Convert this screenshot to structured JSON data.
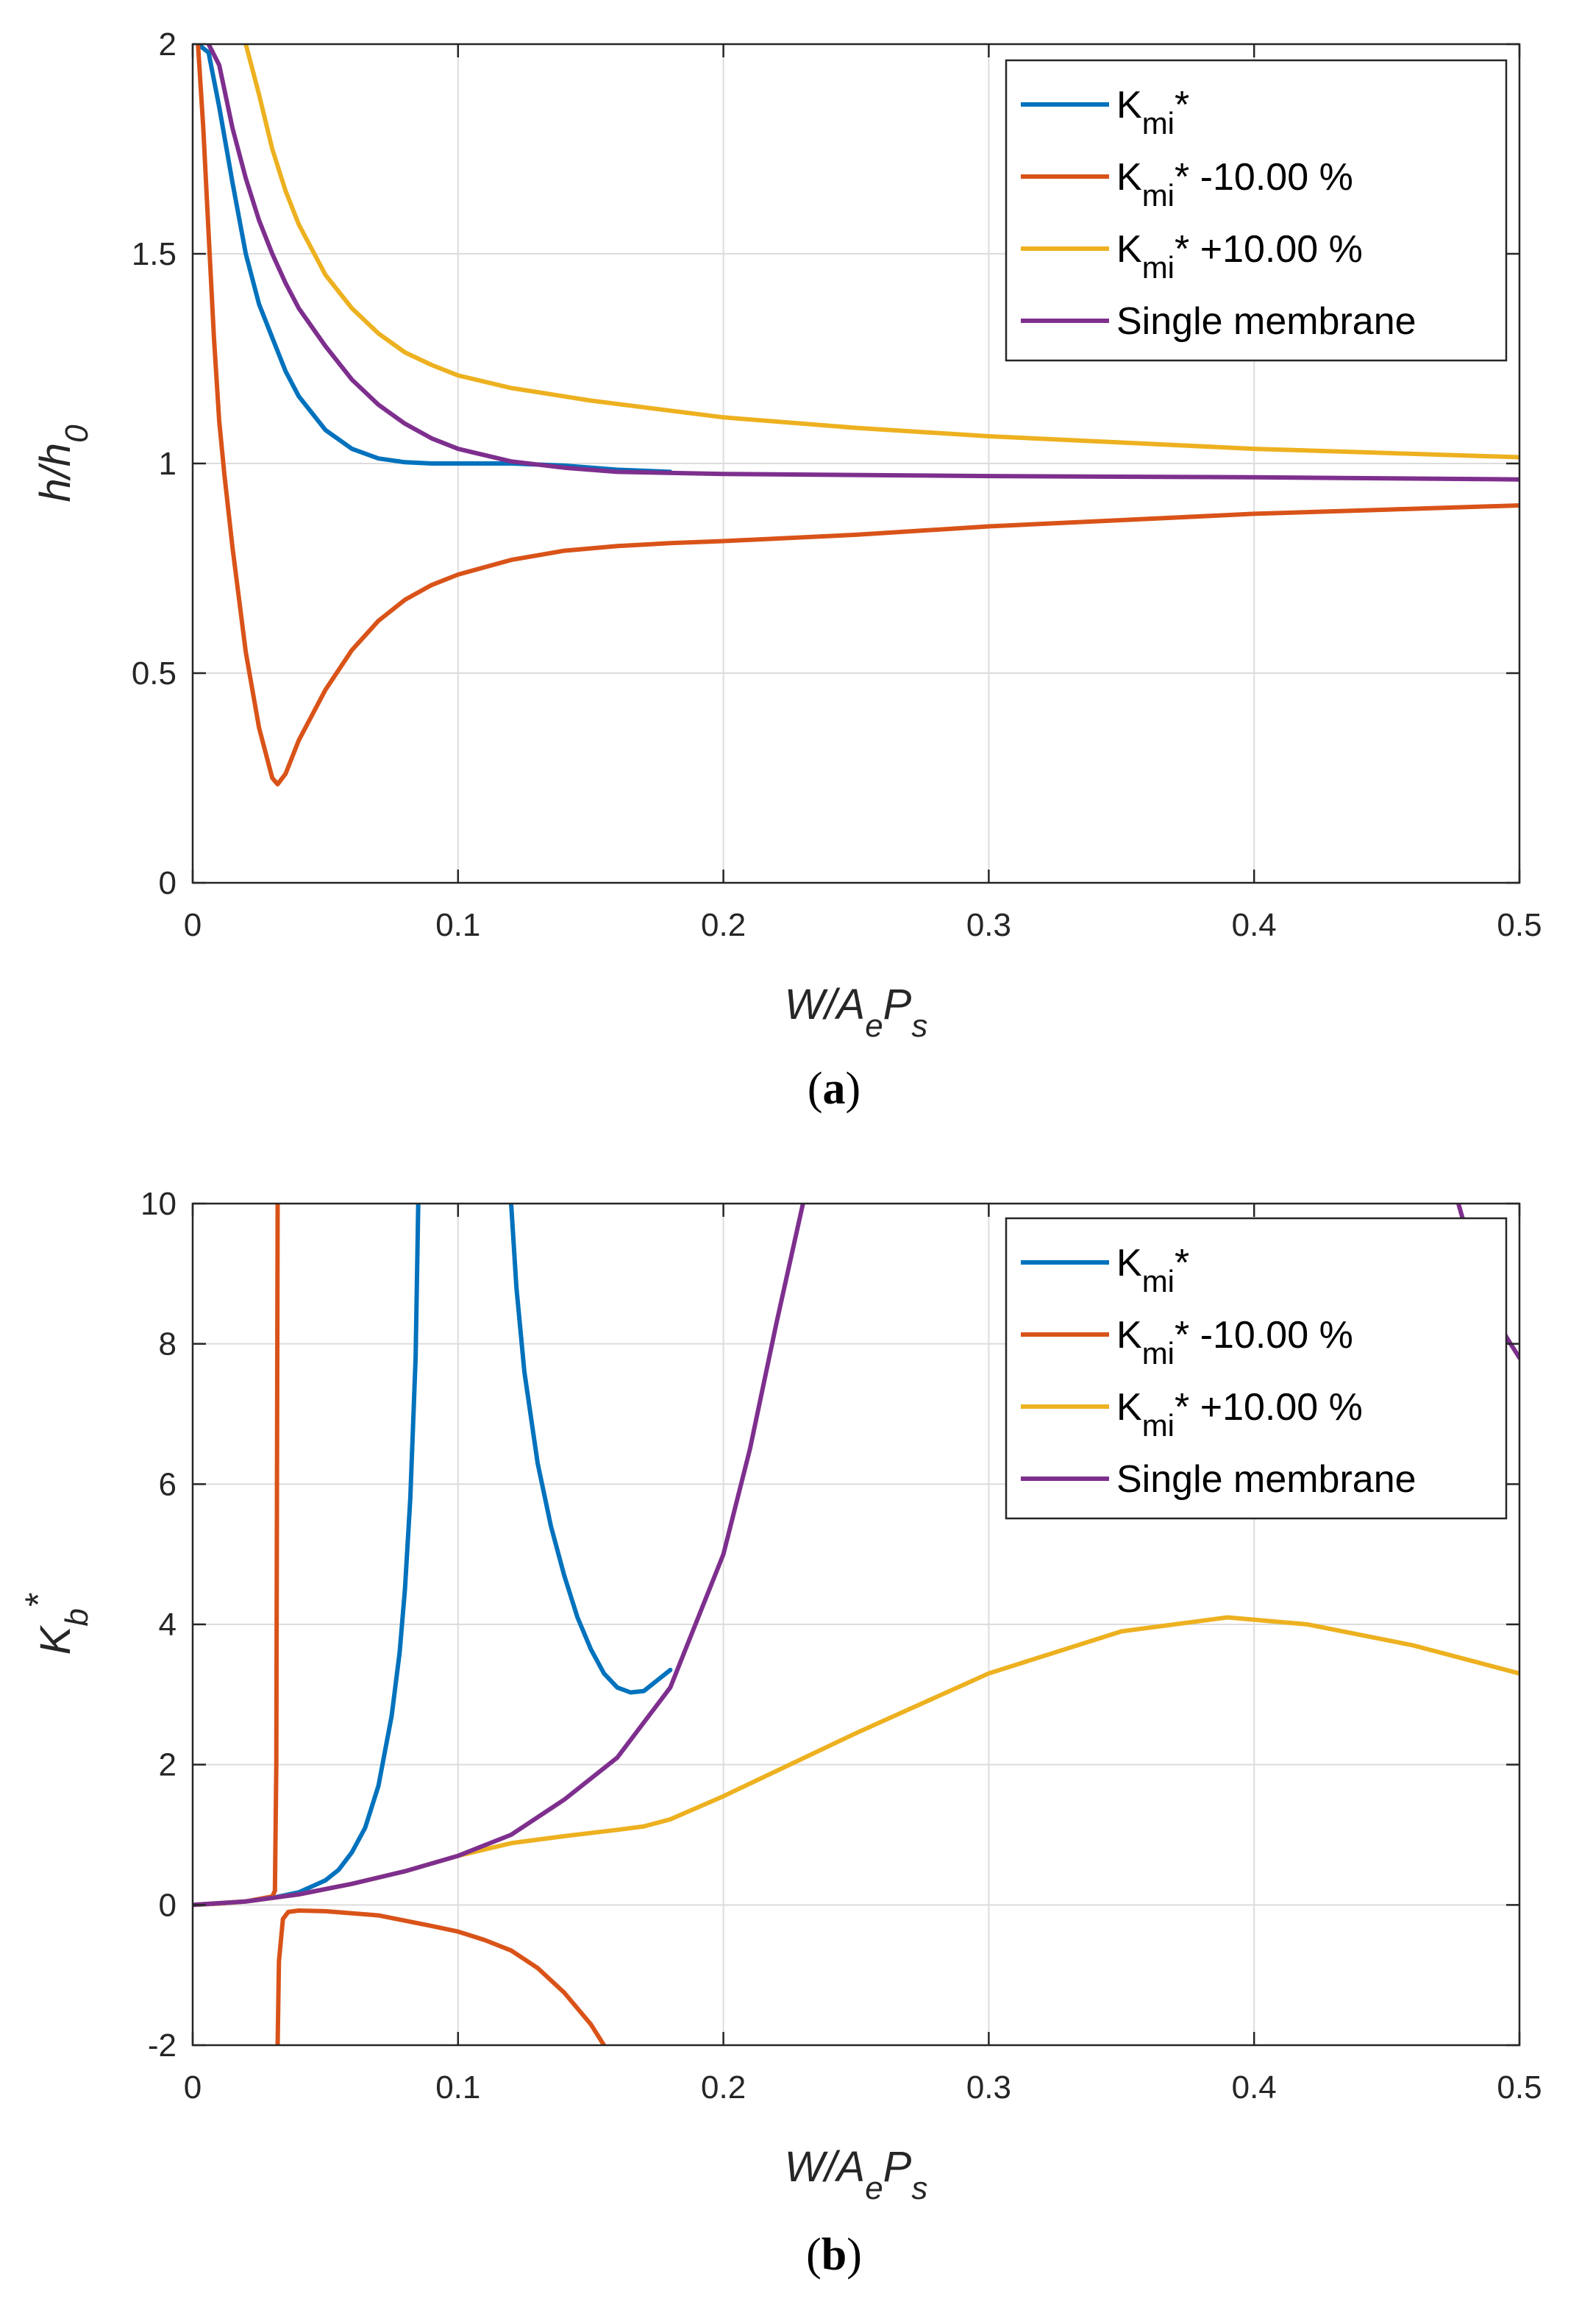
{
  "chart_data": [
    {
      "type": "line",
      "caption": "a",
      "xlabel": {
        "main": "W/A",
        "sub": "e",
        "main2": "P",
        "sub2": "s"
      },
      "ylabel": {
        "main": "h/h",
        "sub": "0"
      },
      "xlim": [
        0,
        0.5
      ],
      "ylim": [
        0,
        2
      ],
      "xticks": [
        0,
        0.1,
        0.2,
        0.3,
        0.4,
        0.5
      ],
      "xtick_labels": [
        "0",
        "0.1",
        "0.2",
        "0.3",
        "0.4",
        "0.5"
      ],
      "yticks": [
        0,
        0.5,
        1,
        1.5,
        2
      ],
      "ytick_labels": [
        "0",
        "0.5",
        "1",
        "1.5",
        "2"
      ],
      "grid": true,
      "legend_position": "top-right",
      "series": [
        {
          "name": "K_mi*",
          "label": {
            "main": "K",
            "sub": "mi",
            "suffix": "*"
          },
          "color": "#0072BD",
          "points": [
            [
              0.002,
              2.0
            ],
            [
              0.006,
              1.98
            ],
            [
              0.01,
              1.85
            ],
            [
              0.015,
              1.67
            ],
            [
              0.02,
              1.5
            ],
            [
              0.025,
              1.38
            ],
            [
              0.03,
              1.3
            ],
            [
              0.035,
              1.22
            ],
            [
              0.04,
              1.16
            ],
            [
              0.045,
              1.12
            ],
            [
              0.05,
              1.08
            ],
            [
              0.06,
              1.035
            ],
            [
              0.07,
              1.012
            ],
            [
              0.08,
              1.003
            ],
            [
              0.09,
              1.0
            ],
            [
              0.1,
              1.0
            ],
            [
              0.12,
              1.0
            ],
            [
              0.14,
              0.995
            ],
            [
              0.16,
              0.985
            ],
            [
              0.18,
              0.98
            ]
          ]
        },
        {
          "name": "K_mi* -10.00 %",
          "label": {
            "main": "K",
            "sub": "mi",
            "suffix": "* -10.00 %"
          },
          "color": "#D95319",
          "points": [
            [
              0.002,
              2.0
            ],
            [
              0.004,
              1.8
            ],
            [
              0.006,
              1.55
            ],
            [
              0.008,
              1.3
            ],
            [
              0.01,
              1.1
            ],
            [
              0.012,
              0.97
            ],
            [
              0.015,
              0.8
            ],
            [
              0.02,
              0.55
            ],
            [
              0.025,
              0.37
            ],
            [
              0.03,
              0.25
            ],
            [
              0.032,
              0.235
            ],
            [
              0.035,
              0.26
            ],
            [
              0.04,
              0.34
            ],
            [
              0.05,
              0.46
            ],
            [
              0.06,
              0.555
            ],
            [
              0.07,
              0.625
            ],
            [
              0.08,
              0.675
            ],
            [
              0.09,
              0.71
            ],
            [
              0.1,
              0.735
            ],
            [
              0.12,
              0.77
            ],
            [
              0.14,
              0.792
            ],
            [
              0.16,
              0.803
            ],
            [
              0.18,
              0.81
            ],
            [
              0.2,
              0.815
            ],
            [
              0.25,
              0.83
            ],
            [
              0.3,
              0.85
            ],
            [
              0.35,
              0.865
            ],
            [
              0.4,
              0.88
            ],
            [
              0.45,
              0.89
            ],
            [
              0.5,
              0.9
            ]
          ]
        },
        {
          "name": "K_mi* +10.00 %",
          "label": {
            "main": "K",
            "sub": "mi",
            "suffix": "* +10.00 %"
          },
          "color": "#EDB120",
          "points": [
            [
              0.02,
              2.0
            ],
            [
              0.025,
              1.88
            ],
            [
              0.03,
              1.75
            ],
            [
              0.035,
              1.65
            ],
            [
              0.04,
              1.57
            ],
            [
              0.05,
              1.45
            ],
            [
              0.06,
              1.37
            ],
            [
              0.07,
              1.31
            ],
            [
              0.08,
              1.265
            ],
            [
              0.09,
              1.235
            ],
            [
              0.1,
              1.21
            ],
            [
              0.12,
              1.18
            ],
            [
              0.15,
              1.15
            ],
            [
              0.2,
              1.11
            ],
            [
              0.25,
              1.085
            ],
            [
              0.3,
              1.065
            ],
            [
              0.35,
              1.05
            ],
            [
              0.4,
              1.035
            ],
            [
              0.45,
              1.025
            ],
            [
              0.5,
              1.015
            ]
          ]
        },
        {
          "name": "Single membrane",
          "label": {
            "main": "Single membrane",
            "sub": "",
            "suffix": ""
          },
          "color": "#7E2F8E",
          "points": [
            [
              0.006,
              2.0
            ],
            [
              0.01,
              1.95
            ],
            [
              0.015,
              1.8
            ],
            [
              0.02,
              1.68
            ],
            [
              0.025,
              1.58
            ],
            [
              0.03,
              1.5
            ],
            [
              0.035,
              1.43
            ],
            [
              0.04,
              1.37
            ],
            [
              0.05,
              1.28
            ],
            [
              0.06,
              1.2
            ],
            [
              0.07,
              1.14
            ],
            [
              0.08,
              1.095
            ],
            [
              0.09,
              1.06
            ],
            [
              0.1,
              1.035
            ],
            [
              0.12,
              1.005
            ],
            [
              0.14,
              0.99
            ],
            [
              0.16,
              0.98
            ],
            [
              0.2,
              0.975
            ],
            [
              0.3,
              0.97
            ],
            [
              0.4,
              0.967
            ],
            [
              0.5,
              0.962
            ]
          ]
        }
      ]
    },
    {
      "type": "line",
      "caption": "b",
      "xlabel": {
        "main": "W/A",
        "sub": "e",
        "main2": "P",
        "sub2": "s"
      },
      "ylabel": {
        "main": "K",
        "sub": "b",
        "sup": "*"
      },
      "xlim": [
        0,
        0.5
      ],
      "ylim": [
        -2,
        10
      ],
      "xticks": [
        0,
        0.1,
        0.2,
        0.3,
        0.4,
        0.5
      ],
      "xtick_labels": [
        "0",
        "0.1",
        "0.2",
        "0.3",
        "0.4",
        "0.5"
      ],
      "yticks": [
        -2,
        0,
        2,
        4,
        6,
        8,
        10
      ],
      "ytick_labels": [
        "-2",
        "0",
        "2",
        "4",
        "6",
        "8",
        "10"
      ],
      "grid": true,
      "legend_position": "top-right",
      "series": [
        {
          "name": "K_mi*",
          "label": {
            "main": "K",
            "sub": "mi",
            "suffix": "*"
          },
          "color": "#0072BD",
          "segments": [
            [
              [
                0.0,
                0.0
              ],
              [
                0.01,
                0.02
              ],
              [
                0.02,
                0.05
              ],
              [
                0.03,
                0.1
              ],
              [
                0.04,
                0.18
              ],
              [
                0.05,
                0.35
              ],
              [
                0.055,
                0.5
              ],
              [
                0.06,
                0.75
              ],
              [
                0.065,
                1.1
              ],
              [
                0.07,
                1.7
              ],
              [
                0.075,
                2.7
              ],
              [
                0.078,
                3.6
              ],
              [
                0.08,
                4.5
              ],
              [
                0.082,
                5.8
              ],
              [
                0.084,
                7.8
              ],
              [
                0.085,
                10.0
              ]
            ],
            [
              [
                0.12,
                10.0
              ],
              [
                0.122,
                8.8
              ],
              [
                0.125,
                7.6
              ],
              [
                0.13,
                6.3
              ],
              [
                0.135,
                5.4
              ],
              [
                0.14,
                4.7
              ],
              [
                0.145,
                4.1
              ],
              [
                0.15,
                3.65
              ],
              [
                0.155,
                3.3
              ],
              [
                0.16,
                3.1
              ],
              [
                0.165,
                3.03
              ],
              [
                0.17,
                3.05
              ],
              [
                0.175,
                3.2
              ],
              [
                0.18,
                3.35
              ]
            ]
          ]
        },
        {
          "name": "K_mi* -10.00 %",
          "label": {
            "main": "K",
            "sub": "mi",
            "suffix": "* -10.00 %"
          },
          "color": "#D95319",
          "segments": [
            [
              [
                0.0,
                0.0
              ],
              [
                0.01,
                0.02
              ],
              [
                0.02,
                0.05
              ],
              [
                0.03,
                0.12
              ],
              [
                0.031,
                0.2
              ],
              [
                0.0315,
                2.0
              ],
              [
                0.032,
                10.0
              ]
            ],
            [
              [
                0.032,
                -2.0
              ],
              [
                0.0325,
                -0.8
              ],
              [
                0.034,
                -0.2
              ],
              [
                0.036,
                -0.1
              ],
              [
                0.04,
                -0.08
              ],
              [
                0.05,
                -0.09
              ],
              [
                0.07,
                -0.15
              ],
              [
                0.09,
                -0.3
              ],
              [
                0.1,
                -0.38
              ],
              [
                0.11,
                -0.5
              ],
              [
                0.12,
                -0.65
              ],
              [
                0.13,
                -0.9
              ],
              [
                0.14,
                -1.25
              ],
              [
                0.15,
                -1.7
              ],
              [
                0.155,
                -2.0
              ]
            ]
          ]
        },
        {
          "name": "K_mi* +10.00 %",
          "label": {
            "main": "K",
            "sub": "mi",
            "suffix": "* +10.00 %"
          },
          "color": "#EDB120",
          "segments": [
            [
              [
                0.0,
                0.0
              ],
              [
                0.02,
                0.05
              ],
              [
                0.04,
                0.15
              ],
              [
                0.06,
                0.3
              ],
              [
                0.08,
                0.48
              ],
              [
                0.1,
                0.7
              ],
              [
                0.12,
                0.88
              ],
              [
                0.14,
                0.98
              ],
              [
                0.16,
                1.07
              ],
              [
                0.17,
                1.12
              ],
              [
                0.18,
                1.22
              ],
              [
                0.2,
                1.55
              ],
              [
                0.25,
                2.45
              ],
              [
                0.3,
                3.3
              ],
              [
                0.35,
                3.9
              ],
              [
                0.39,
                4.1
              ],
              [
                0.42,
                4.0
              ],
              [
                0.46,
                3.7
              ],
              [
                0.5,
                3.3
              ]
            ]
          ]
        },
        {
          "name": "Single membrane",
          "label": {
            "main": "Single membrane",
            "sub": "",
            "suffix": ""
          },
          "color": "#7E2F8E",
          "segments": [
            [
              [
                0.0,
                0.0
              ],
              [
                0.02,
                0.05
              ],
              [
                0.04,
                0.15
              ],
              [
                0.06,
                0.3
              ],
              [
                0.08,
                0.48
              ],
              [
                0.1,
                0.7
              ],
              [
                0.12,
                1.0
              ],
              [
                0.14,
                1.5
              ],
              [
                0.16,
                2.1
              ],
              [
                0.18,
                3.1
              ],
              [
                0.2,
                5.0
              ],
              [
                0.21,
                6.5
              ],
              [
                0.22,
                8.3
              ],
              [
                0.23,
                10.0
              ]
            ],
            [
              [
                0.477,
                10.0
              ],
              [
                0.48,
                9.6
              ],
              [
                0.485,
                9.0
              ],
              [
                0.49,
                8.5
              ],
              [
                0.495,
                8.1
              ],
              [
                0.5,
                7.8
              ]
            ]
          ]
        }
      ]
    }
  ]
}
